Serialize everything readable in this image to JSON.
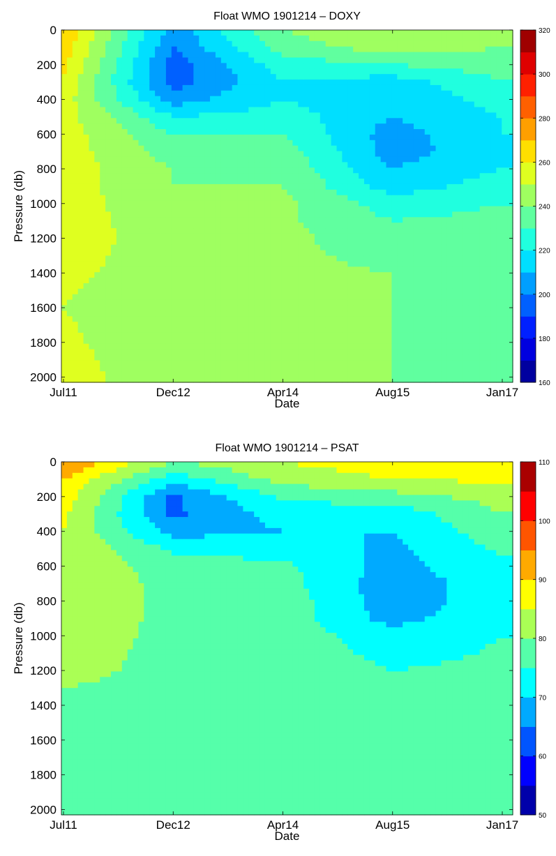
{
  "chart_data": [
    {
      "type": "heatmap",
      "title": "Float WMO 1901214 – DOXY",
      "xlabel": "Date",
      "ylabel": "Pressure (db)",
      "x_ticks": [
        "Jul11",
        "Dec12",
        "Apr14",
        "Aug15",
        "Jan17"
      ],
      "y_ticks": [
        0,
        200,
        400,
        600,
        800,
        1000,
        1200,
        1400,
        1600,
        1800,
        2000
      ],
      "ylim": [
        0,
        2030
      ],
      "y_reversed": true,
      "colorbar": {
        "ticks": [
          160,
          180,
          200,
          220,
          240,
          260,
          280,
          300,
          320
        ],
        "range": [
          160,
          320
        ],
        "step": 10
      },
      "field": {
        "x": [
          "Jul11",
          "Dec12",
          "Apr14",
          "Aug15",
          "Jan17"
        ],
        "depths": [
          0,
          100,
          200,
          300,
          400,
          500,
          600,
          700,
          800,
          900,
          1000,
          1200,
          1400,
          1600,
          1800,
          2000
        ],
        "values": [
          [
            270,
            205,
            240,
            250,
            245
          ],
          [
            265,
            200,
            235,
            245,
            240
          ],
          [
            262,
            195,
            225,
            230,
            235
          ],
          [
            258,
            195,
            220,
            215,
            230
          ],
          [
            255,
            205,
            220,
            210,
            225
          ],
          [
            255,
            220,
            225,
            210,
            220
          ],
          [
            255,
            230,
            230,
            205,
            220
          ],
          [
            255,
            235,
            235,
            205,
            218
          ],
          [
            255,
            240,
            238,
            210,
            220
          ],
          [
            255,
            240,
            240,
            215,
            225
          ],
          [
            255,
            242,
            242,
            225,
            230
          ],
          [
            255,
            245,
            242,
            235,
            235
          ],
          [
            252,
            245,
            242,
            240,
            238
          ],
          [
            250,
            242,
            242,
            240,
            238
          ],
          [
            252,
            242,
            242,
            240,
            238
          ],
          [
            255,
            242,
            242,
            240,
            238
          ]
        ]
      }
    },
    {
      "type": "heatmap",
      "title": "Float WMO 1901214 – PSAT",
      "xlabel": "Date",
      "ylabel": "Pressure (db)",
      "x_ticks": [
        "Jul11",
        "Dec12",
        "Apr14",
        "Aug15",
        "Jan17"
      ],
      "y_ticks": [
        0,
        200,
        400,
        600,
        800,
        1000,
        1200,
        1400,
        1600,
        1800,
        2000
      ],
      "ylim": [
        0,
        2030
      ],
      "y_reversed": true,
      "colorbar": {
        "ticks": [
          50,
          60,
          70,
          80,
          90,
          100,
          110
        ],
        "range": [
          50,
          110
        ],
        "step": 5
      },
      "field": {
        "x": [
          "Jul11",
          "Dec12",
          "Apr14",
          "Aug15",
          "Jan17"
        ],
        "depths": [
          0,
          100,
          200,
          300,
          400,
          500,
          600,
          700,
          800,
          900,
          1000,
          1200,
          1400,
          1600,
          1800,
          2000
        ],
        "values": [
          [
            95,
            80,
            85,
            88,
            88
          ],
          [
            90,
            72,
            82,
            85,
            86
          ],
          [
            88,
            64,
            76,
            78,
            82
          ],
          [
            86,
            64,
            72,
            72,
            80
          ],
          [
            85,
            68,
            70,
            70,
            78
          ],
          [
            85,
            74,
            73,
            69,
            76
          ],
          [
            85,
            77,
            76,
            68,
            74
          ],
          [
            85,
            78,
            77,
            67,
            73
          ],
          [
            85,
            78,
            78,
            67,
            73
          ],
          [
            85,
            78,
            78,
            68,
            74
          ],
          [
            84,
            78,
            78,
            72,
            75
          ],
          [
            82,
            78,
            78,
            75,
            76
          ],
          [
            78,
            78,
            78,
            77,
            77
          ],
          [
            78,
            78,
            78,
            77,
            77
          ],
          [
            78,
            78,
            78,
            77,
            77
          ],
          [
            78,
            78,
            78,
            77,
            77
          ]
        ]
      }
    }
  ]
}
